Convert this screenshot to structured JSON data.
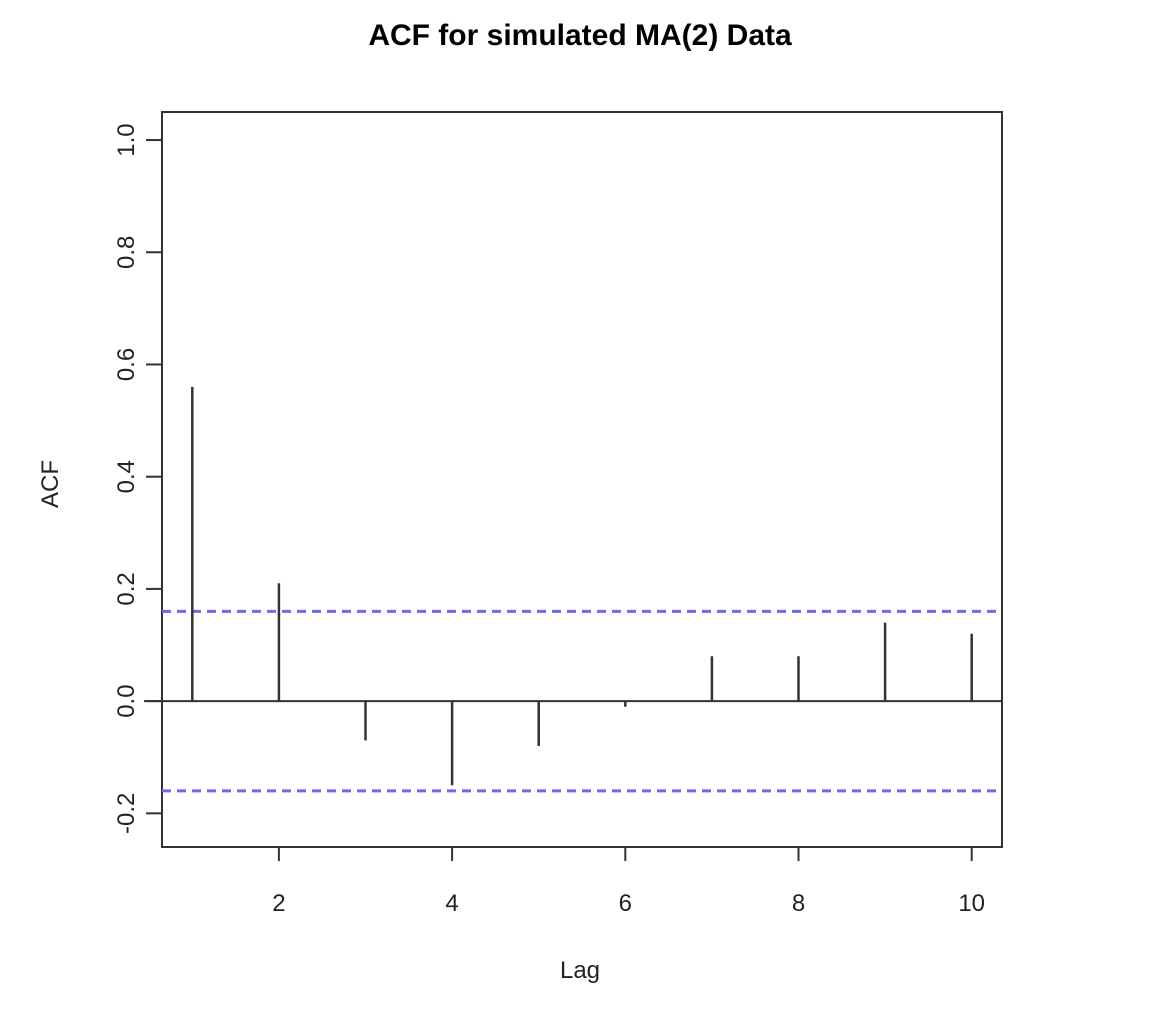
{
  "chart_data": {
    "type": "bar",
    "title": "ACF for simulated MA(2) Data",
    "xlabel": "Lag",
    "ylabel": "ACF",
    "x": [
      1,
      2,
      3,
      4,
      5,
      6,
      7,
      8,
      9,
      10
    ],
    "values": [
      0.56,
      0.21,
      -0.07,
      -0.15,
      -0.08,
      -0.01,
      0.08,
      0.08,
      0.14,
      0.12
    ],
    "xlim": [
      0.65,
      10.35
    ],
    "ylim": [
      -0.26,
      1.05
    ],
    "x_ticks": [
      2,
      4,
      6,
      8,
      10
    ],
    "x_tick_labels": [
      "2",
      "4",
      "6",
      "8",
      "10"
    ],
    "y_ticks": [
      -0.2,
      0.0,
      0.2,
      0.4,
      0.6,
      0.8,
      1.0
    ],
    "y_tick_labels": [
      "-0.2",
      "0.0",
      "0.2",
      "0.4",
      "0.6",
      "0.8",
      "1.0"
    ],
    "confidence_bounds": [
      0.16,
      -0.16
    ],
    "confidence_color": "#6b6bf0",
    "zero_line": true,
    "grid": false,
    "bar_color": "#333333"
  }
}
